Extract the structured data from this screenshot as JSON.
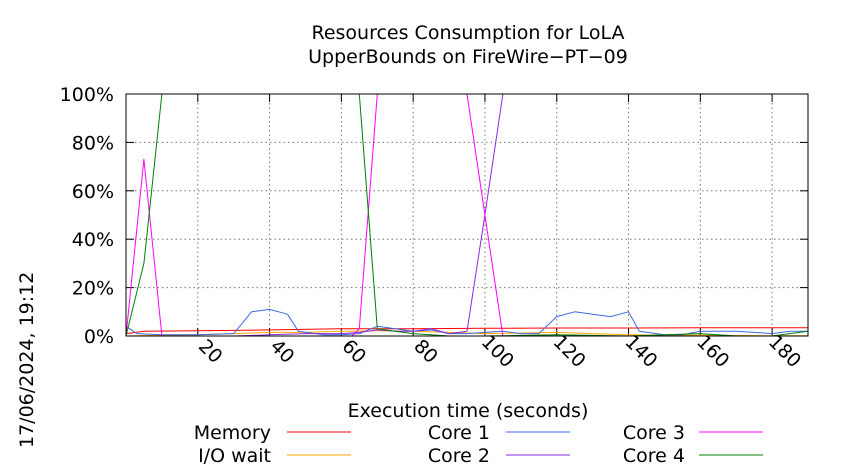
{
  "timestamp": "17/06/2024, 19:12",
  "chart_data": {
    "type": "line",
    "title_lines": [
      "Resources Consumption for LoLA",
      "UpperBounds on FireWire−PT−09"
    ],
    "xlabel": "Execution time (seconds)",
    "ylabel": "",
    "xlim": [
      0,
      190
    ],
    "ylim": [
      0,
      100
    ],
    "x_ticks": [
      20,
      40,
      60,
      80,
      100,
      120,
      140,
      160,
      180
    ],
    "y_ticks": [
      0,
      20,
      40,
      60,
      80,
      100
    ],
    "y_tick_labels": [
      "0%",
      "20%",
      "40%",
      "60%",
      "80%",
      "100%"
    ],
    "grid": true,
    "legend_position": "bottom",
    "series": [
      {
        "name": "Memory",
        "color": "#ff0000",
        "points": [
          [
            0,
            1
          ],
          [
            5,
            2
          ],
          [
            20,
            2.2
          ],
          [
            40,
            2.5
          ],
          [
            60,
            3
          ],
          [
            80,
            3
          ],
          [
            100,
            3.2
          ],
          [
            120,
            3.3
          ],
          [
            140,
            3.3
          ],
          [
            160,
            3.4
          ],
          [
            190,
            3.4
          ]
        ]
      },
      {
        "name": "I/O wait",
        "color": "#ffa500",
        "points": [
          [
            0,
            0
          ],
          [
            10,
            0.3
          ],
          [
            20,
            0.5
          ],
          [
            30,
            1
          ],
          [
            40,
            1.5
          ],
          [
            50,
            1.5
          ],
          [
            60,
            2
          ],
          [
            70,
            2.2
          ],
          [
            80,
            2
          ],
          [
            90,
            1.5
          ],
          [
            100,
            1
          ],
          [
            110,
            1.2
          ],
          [
            120,
            1.5
          ],
          [
            130,
            1
          ],
          [
            140,
            0.5
          ],
          [
            150,
            0.3
          ],
          [
            160,
            0.3
          ],
          [
            170,
            0.2
          ],
          [
            180,
            0.1
          ],
          [
            190,
            0.1
          ]
        ]
      },
      {
        "name": "Core 1",
        "color": "#4169e1",
        "points": [
          [
            0,
            4
          ],
          [
            3,
            1
          ],
          [
            10,
            0.5
          ],
          [
            20,
            0.5
          ],
          [
            30,
            1
          ],
          [
            35,
            10
          ],
          [
            40,
            11
          ],
          [
            45,
            9
          ],
          [
            48,
            2
          ],
          [
            55,
            0.5
          ],
          [
            60,
            0.5
          ],
          [
            65,
            1
          ],
          [
            70,
            4
          ],
          [
            75,
            3
          ],
          [
            80,
            2
          ],
          [
            85,
            2.5
          ],
          [
            90,
            1
          ],
          [
            95,
            1
          ],
          [
            100,
            1.5
          ],
          [
            105,
            2
          ],
          [
            110,
            1
          ],
          [
            115,
            1
          ],
          [
            120,
            8
          ],
          [
            125,
            10
          ],
          [
            130,
            9
          ],
          [
            135,
            8
          ],
          [
            140,
            10
          ],
          [
            143,
            2
          ],
          [
            150,
            0.5
          ],
          [
            155,
            0.5
          ],
          [
            160,
            2
          ],
          [
            165,
            2
          ],
          [
            170,
            2
          ],
          [
            175,
            1.5
          ],
          [
            180,
            1
          ],
          [
            185,
            2
          ],
          [
            190,
            2
          ]
        ]
      },
      {
        "name": "Core 2",
        "color": "#8a2be2",
        "points": [
          [
            0,
            0
          ],
          [
            30,
            0
          ],
          [
            40,
            0.5
          ],
          [
            50,
            1
          ],
          [
            60,
            1
          ],
          [
            65,
            1.5
          ],
          [
            70,
            2.5
          ],
          [
            75,
            2
          ],
          [
            80,
            2
          ],
          [
            85,
            3
          ],
          [
            90,
            1
          ],
          [
            95,
            2
          ],
          [
            100,
            50
          ],
          [
            105,
            100
          ],
          [
            120,
            100
          ],
          [
            140,
            100
          ],
          [
            160,
            100
          ],
          [
            180,
            100
          ],
          [
            190,
            100
          ]
        ]
      },
      {
        "name": "Core 3",
        "color": "#ff00ff",
        "points": [
          [
            0,
            0
          ],
          [
            5,
            73
          ],
          [
            10,
            0
          ],
          [
            20,
            0
          ],
          [
            40,
            0
          ],
          [
            55,
            0
          ],
          [
            63,
            0
          ],
          [
            65,
            3
          ],
          [
            70,
            100
          ],
          [
            80,
            100
          ],
          [
            95,
            100
          ],
          [
            100,
            50
          ],
          [
            105,
            0
          ],
          [
            120,
            0
          ],
          [
            140,
            0
          ],
          [
            160,
            0
          ],
          [
            180,
            0
          ],
          [
            190,
            0
          ]
        ]
      },
      {
        "name": "Core 4",
        "color": "#008000",
        "points": [
          [
            0,
            0
          ],
          [
            5,
            30
          ],
          [
            10,
            100
          ],
          [
            20,
            100
          ],
          [
            40,
            100
          ],
          [
            60,
            100
          ],
          [
            65,
            100
          ],
          [
            70,
            3
          ],
          [
            75,
            2
          ],
          [
            80,
            1
          ],
          [
            90,
            0
          ],
          [
            100,
            0
          ],
          [
            120,
            0.5
          ],
          [
            140,
            0
          ],
          [
            160,
            1
          ],
          [
            170,
            0
          ],
          [
            180,
            0
          ],
          [
            190,
            2
          ]
        ]
      }
    ]
  }
}
